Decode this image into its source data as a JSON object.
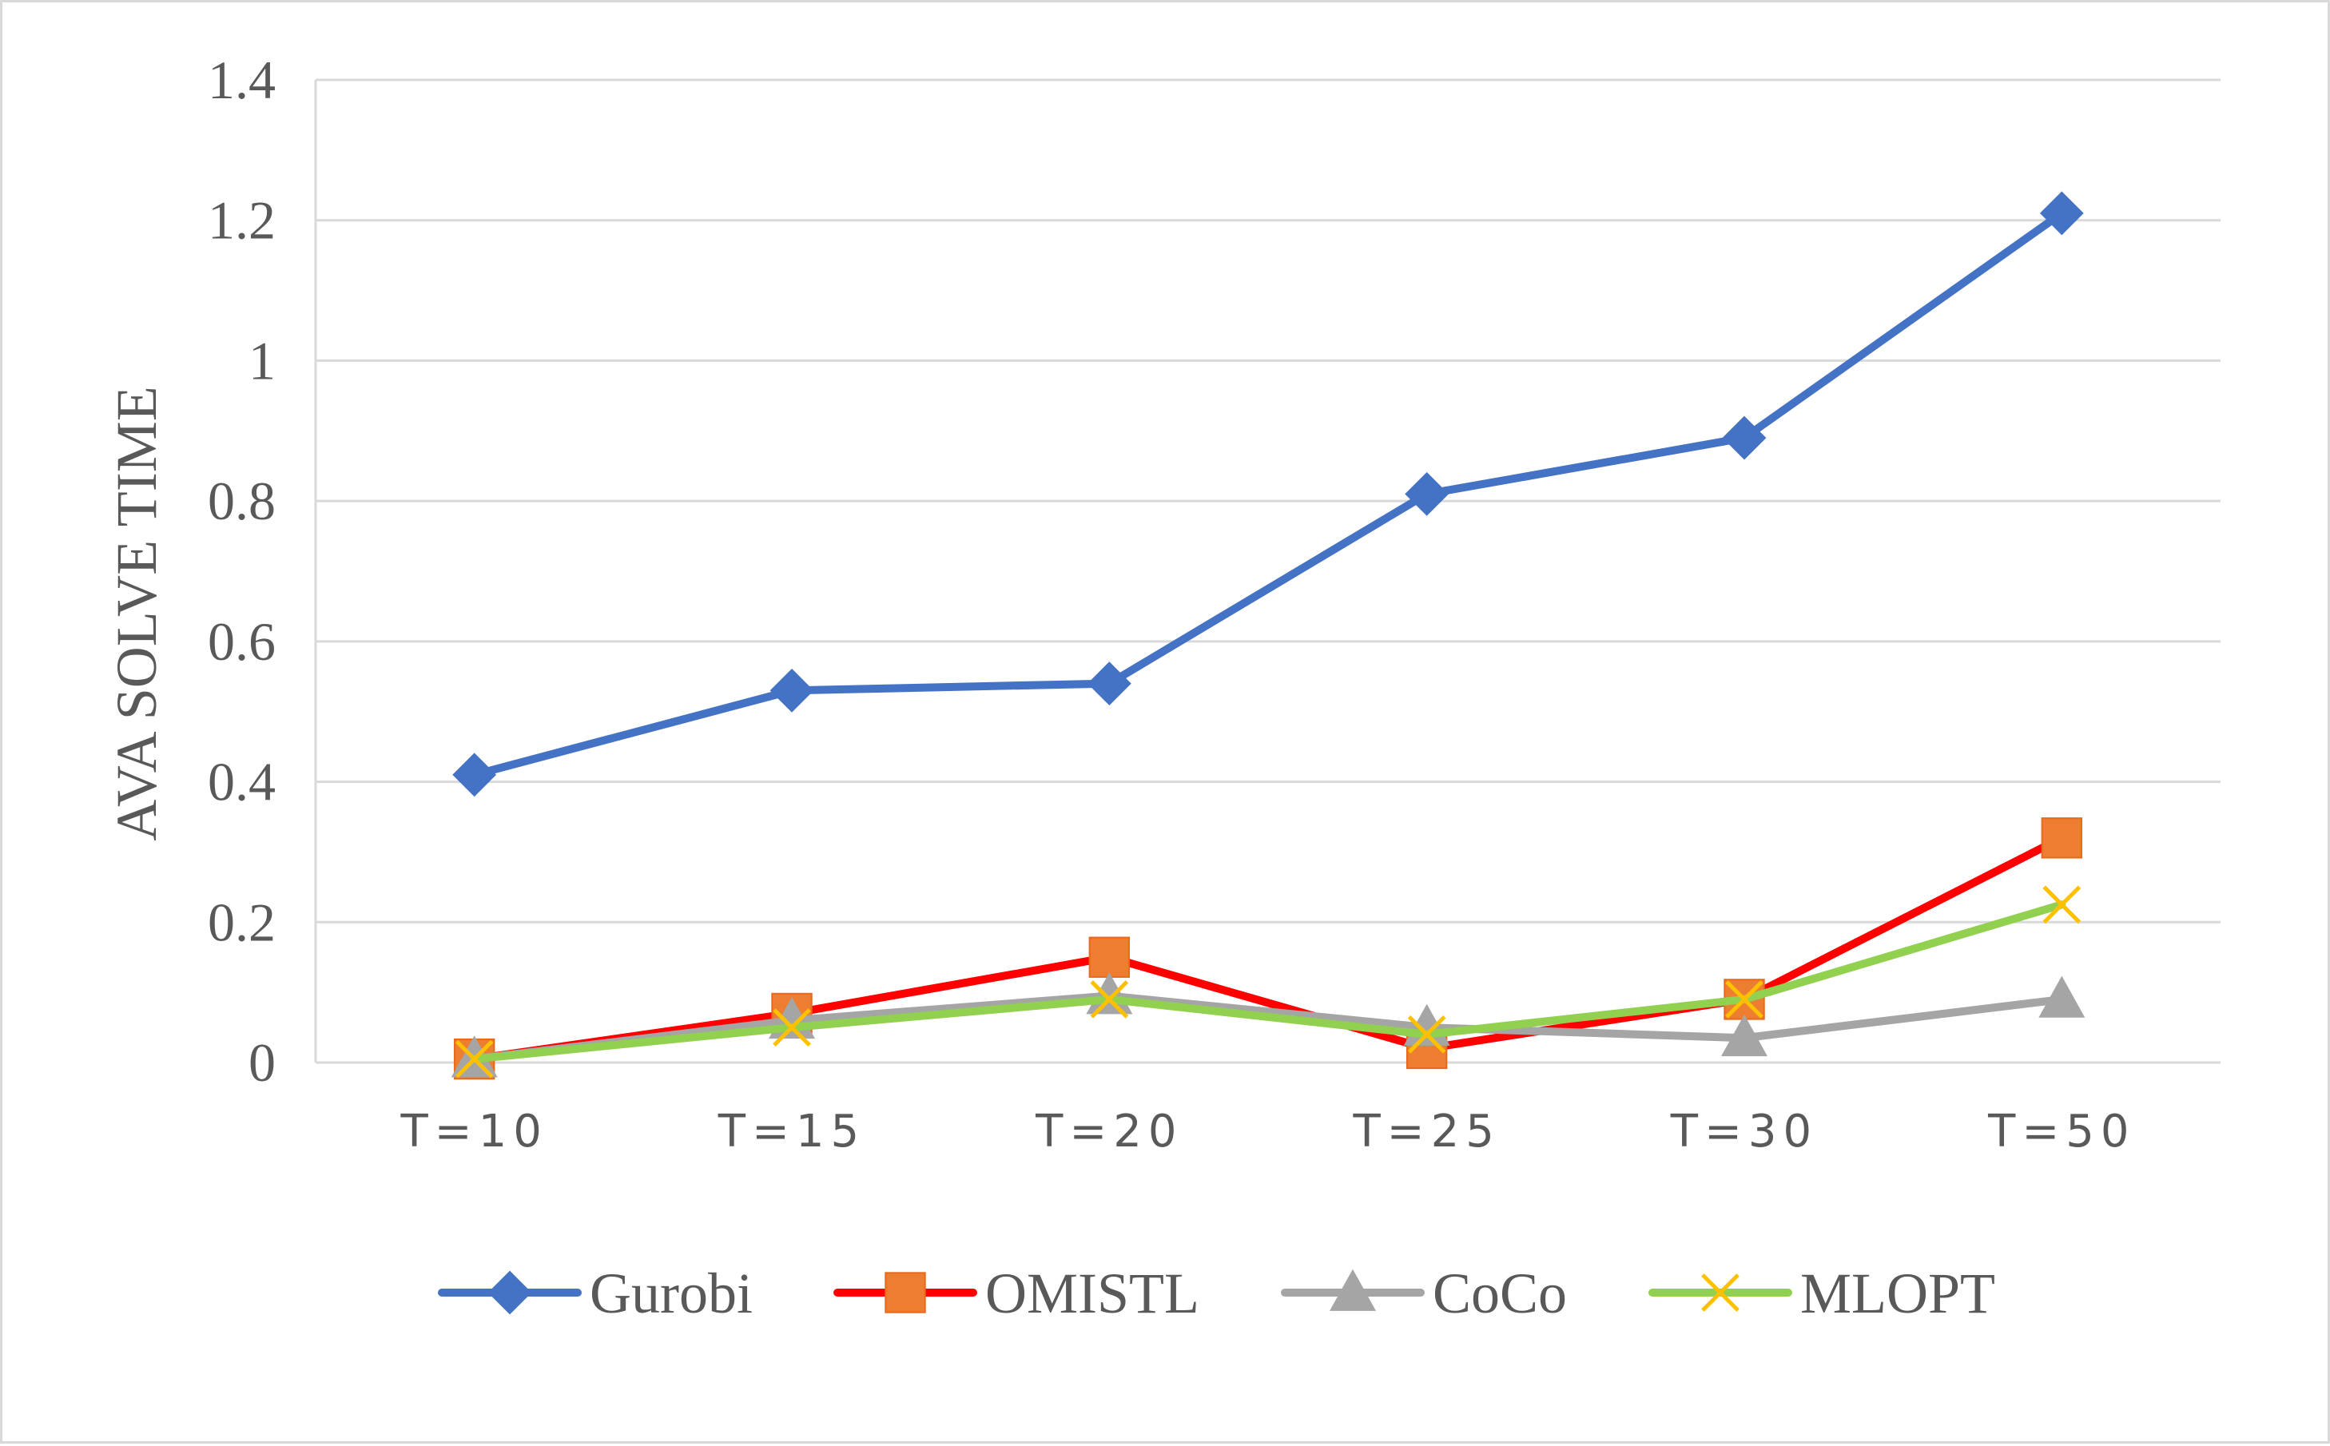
{
  "chart_data": {
    "type": "line",
    "title": "",
    "xlabel": "",
    "ylabel": "AVA SOLVE TIME",
    "categories": [
      "T=10",
      "T=15",
      "T=20",
      "T=25",
      "T=30",
      "T=50"
    ],
    "ylim": [
      0,
      1.4
    ],
    "yticks": [
      "0",
      "0.2",
      "0.4",
      "0.6",
      "0.8",
      "1",
      "1.2",
      "1.4"
    ],
    "grid": "horizontal",
    "legend_position": "bottom",
    "series": [
      {
        "name": "Gurobi",
        "values": [
          0.41,
          0.53,
          0.54,
          0.81,
          0.89,
          1.21
        ],
        "color": "#4472C4",
        "marker": "diamond"
      },
      {
        "name": "OMISTL",
        "values": [
          0.005,
          0.07,
          0.15,
          0.02,
          0.09,
          0.32
        ],
        "color": "#FF0000",
        "marker_color": "#ED7D31",
        "marker": "square"
      },
      {
        "name": "CoCo",
        "values": [
          0.005,
          0.06,
          0.095,
          0.05,
          0.035,
          0.09
        ],
        "color": "#A5A5A5",
        "marker": "triangle"
      },
      {
        "name": "MLOPT",
        "values": [
          0.005,
          0.05,
          0.09,
          0.04,
          0.09,
          0.225
        ],
        "color": "#92D050",
        "marker_color": "#FFC000",
        "marker": "x"
      }
    ]
  }
}
